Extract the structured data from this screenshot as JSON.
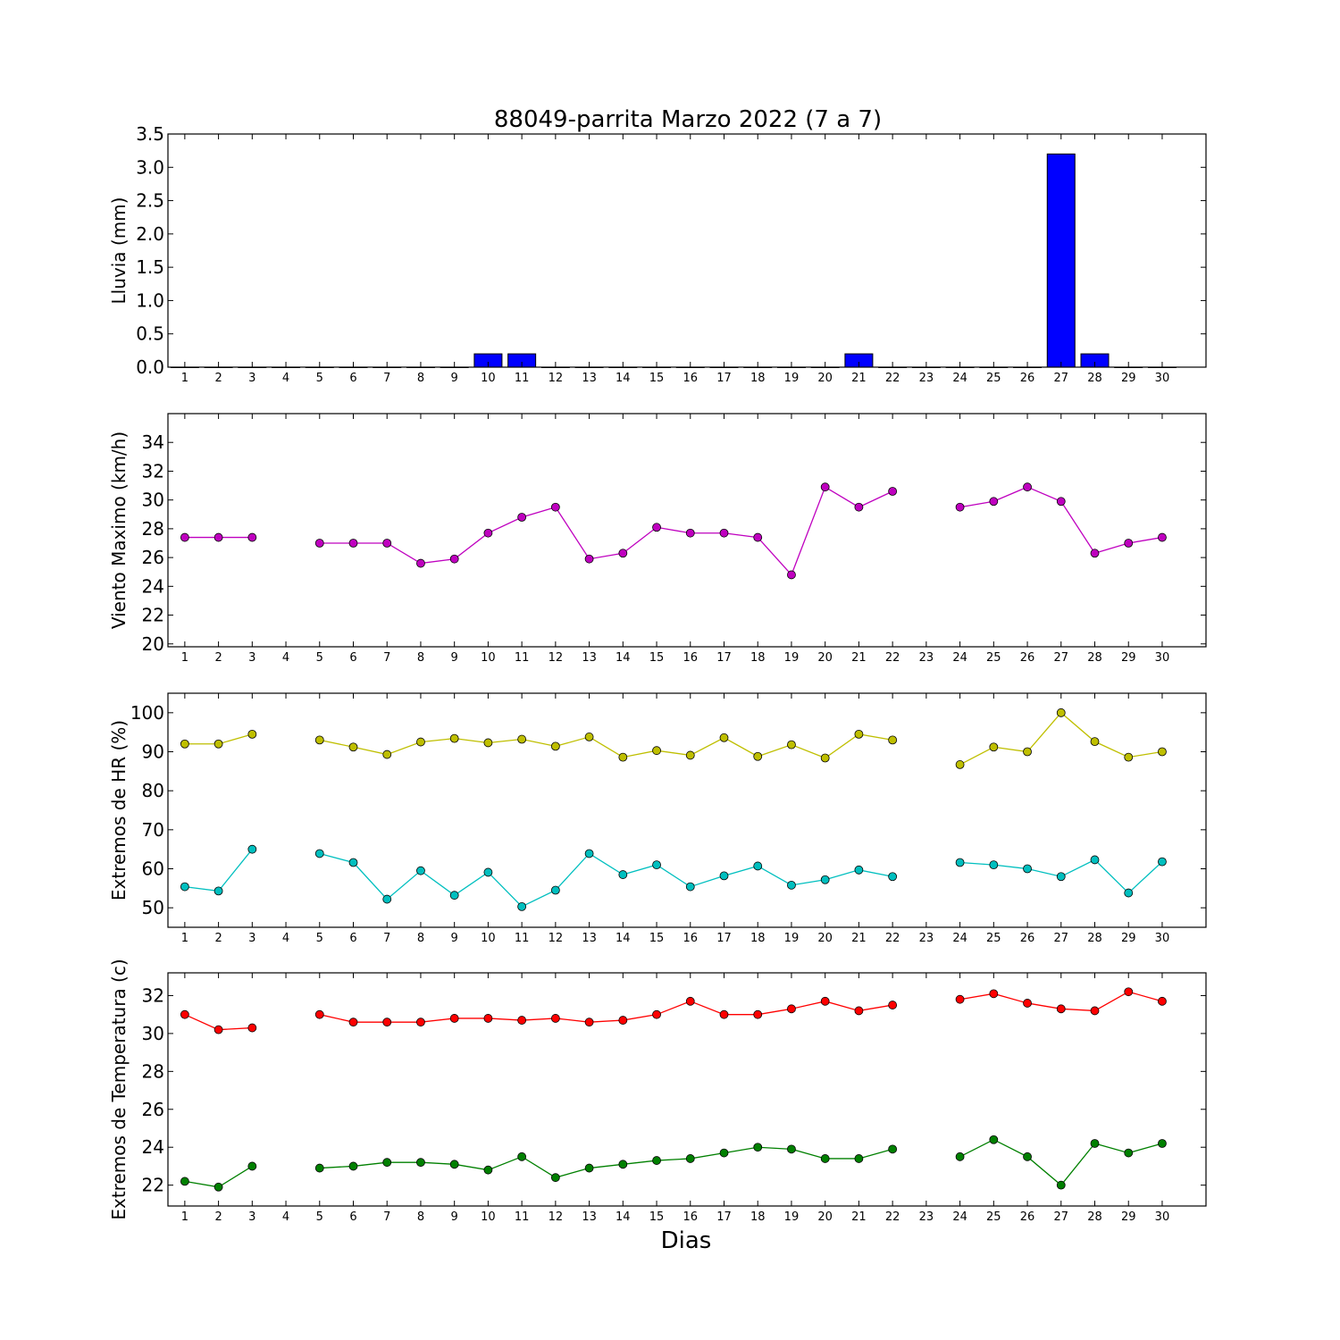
{
  "title": "88049-parrita Marzo 2022  (7 a 7)",
  "xlabel": "Dias",
  "chart_data": [
    {
      "type": "bar",
      "ylabel": "Lluvia (mm)",
      "x": [
        1,
        2,
        3,
        4,
        5,
        6,
        7,
        8,
        9,
        10,
        11,
        12,
        13,
        14,
        15,
        16,
        17,
        18,
        19,
        20,
        21,
        22,
        23,
        24,
        25,
        26,
        27,
        28,
        29,
        30
      ],
      "values": [
        0,
        0,
        0,
        0,
        0,
        0,
        0,
        0,
        0,
        0.2,
        0.2,
        0,
        0,
        0,
        0,
        0,
        0,
        0,
        0,
        0,
        0.2,
        0,
        0,
        0,
        0,
        0,
        3.2,
        0.2,
        0,
        0
      ],
      "color": "#0000ff",
      "ylim": [
        0,
        3.5
      ],
      "yticks": [
        "0.0",
        "0.5",
        "1.0",
        "1.5",
        "2.0",
        "2.5",
        "3.0",
        "3.5"
      ],
      "grid": false
    },
    {
      "type": "line",
      "ylabel": "Viento Maximo (km/h)",
      "x": [
        1,
        2,
        3,
        4,
        5,
        6,
        7,
        8,
        9,
        10,
        11,
        12,
        13,
        14,
        15,
        16,
        17,
        18,
        19,
        20,
        21,
        22,
        23,
        24,
        25,
        26,
        27,
        28,
        29,
        30
      ],
      "series": [
        {
          "color": "#bf00bf",
          "values": [
            27.4,
            27.4,
            27.4,
            null,
            27.0,
            27.0,
            27.0,
            25.6,
            25.9,
            27.7,
            28.8,
            29.5,
            25.9,
            26.3,
            28.1,
            27.7,
            27.7,
            27.4,
            24.8,
            30.9,
            29.5,
            30.6,
            null,
            29.5,
            29.9,
            30.9,
            29.9,
            26.3,
            27.0,
            27.4
          ]
        }
      ],
      "ylim": [
        19.8,
        36
      ],
      "yticks": [
        "20",
        "22",
        "24",
        "26",
        "28",
        "30",
        "32",
        "34"
      ],
      "grid": false
    },
    {
      "type": "line",
      "ylabel": "Extremos de HR (%)",
      "x": [
        1,
        2,
        3,
        4,
        5,
        6,
        7,
        8,
        9,
        10,
        11,
        12,
        13,
        14,
        15,
        16,
        17,
        18,
        19,
        20,
        21,
        22,
        23,
        24,
        25,
        26,
        27,
        28,
        29,
        30
      ],
      "series": [
        {
          "color": "#bfbf00",
          "values": [
            92,
            92,
            94.5,
            null,
            93,
            91.2,
            89.3,
            92.5,
            93.4,
            92.3,
            93.2,
            91.4,
            93.8,
            88.6,
            90.3,
            89.1,
            93.6,
            88.8,
            91.8,
            88.4,
            94.5,
            93,
            null,
            86.7,
            91.2,
            90,
            100,
            92.6,
            88.6,
            90
          ]
        },
        {
          "color": "#00bfbf",
          "values": [
            55.4,
            54.3,
            65,
            null,
            63.9,
            61.6,
            52.2,
            59.5,
            53.2,
            59.1,
            50.3,
            54.5,
            63.9,
            58.5,
            61,
            55.4,
            58.2,
            60.7,
            55.8,
            57.2,
            59.7,
            58,
            null,
            61.6,
            61,
            60,
            58,
            62.3,
            53.8,
            61.8
          ]
        }
      ],
      "ylim": [
        45,
        105
      ],
      "yticks": [
        "50",
        "60",
        "70",
        "80",
        "90",
        "100"
      ],
      "grid": false
    },
    {
      "type": "line",
      "ylabel": "Extremos de Temperatura (c)",
      "x": [
        1,
        2,
        3,
        4,
        5,
        6,
        7,
        8,
        9,
        10,
        11,
        12,
        13,
        14,
        15,
        16,
        17,
        18,
        19,
        20,
        21,
        22,
        23,
        24,
        25,
        26,
        27,
        28,
        29,
        30
      ],
      "series": [
        {
          "color": "#ff0000",
          "values": [
            31.0,
            30.2,
            30.3,
            null,
            31.0,
            30.6,
            30.6,
            30.6,
            30.8,
            30.8,
            30.7,
            30.8,
            30.6,
            30.7,
            31.0,
            31.7,
            31.0,
            31.0,
            31.3,
            31.7,
            31.2,
            31.5,
            null,
            31.8,
            32.1,
            31.6,
            31.3,
            31.2,
            32.2,
            31.7
          ]
        },
        {
          "color": "#008000",
          "values": [
            22.2,
            21.9,
            23.0,
            null,
            22.9,
            23.0,
            23.2,
            23.2,
            23.1,
            22.8,
            23.5,
            22.4,
            22.9,
            23.1,
            23.3,
            23.4,
            23.7,
            24.0,
            23.9,
            23.4,
            23.4,
            23.9,
            null,
            23.5,
            24.4,
            23.5,
            22.0,
            24.2,
            23.7,
            24.2
          ]
        }
      ],
      "ylim": [
        20.9,
        33.2
      ],
      "yticks": [
        "22",
        "24",
        "26",
        "28",
        "30",
        "32"
      ],
      "grid": false
    }
  ]
}
